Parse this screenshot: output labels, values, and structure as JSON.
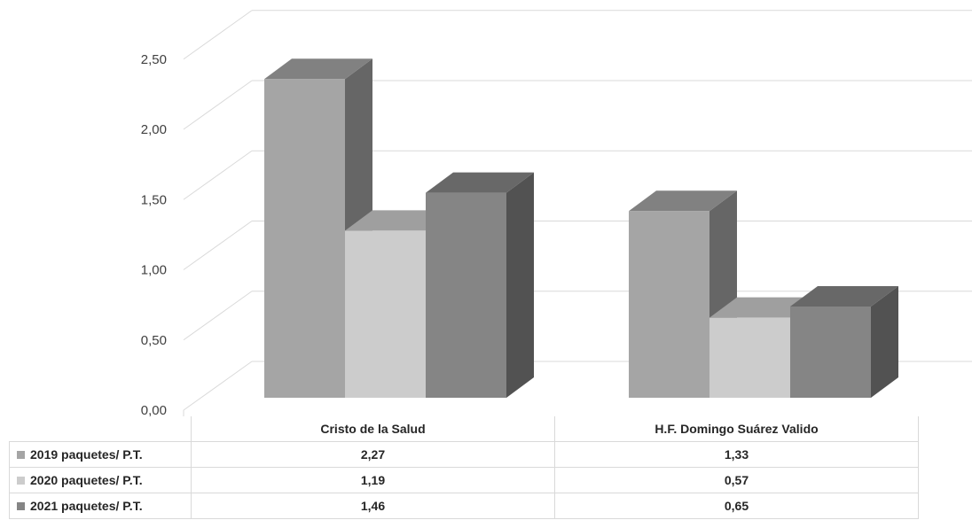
{
  "chart_data": {
    "type": "bar",
    "style": "3d-clustered-column-with-data-table",
    "categories": [
      "Cristo de la Salud",
      "H.F. Domingo Suárez Valido"
    ],
    "series": [
      {
        "name": "2019 paquetes/ P.T.",
        "values": [
          2.27,
          1.33
        ],
        "color": "#a5a5a5",
        "labels": [
          "2,27",
          "1,33"
        ]
      },
      {
        "name": "2020 paquetes/ P.T.",
        "values": [
          1.19,
          0.57
        ],
        "color": "#cccccc",
        "labels": [
          "1,19",
          "0,57"
        ]
      },
      {
        "name": "2021 paquetes/ P.T.",
        "values": [
          1.46,
          0.65
        ],
        "color": "#858585",
        "labels": [
          "1,46",
          "0,65"
        ]
      }
    ],
    "y_ticks": [
      "0,00",
      "0,50",
      "1,00",
      "1,50",
      "2,00",
      "2,50"
    ],
    "ylim": [
      0,
      2.5
    ],
    "grid": true,
    "legend": "data-table-left"
  }
}
